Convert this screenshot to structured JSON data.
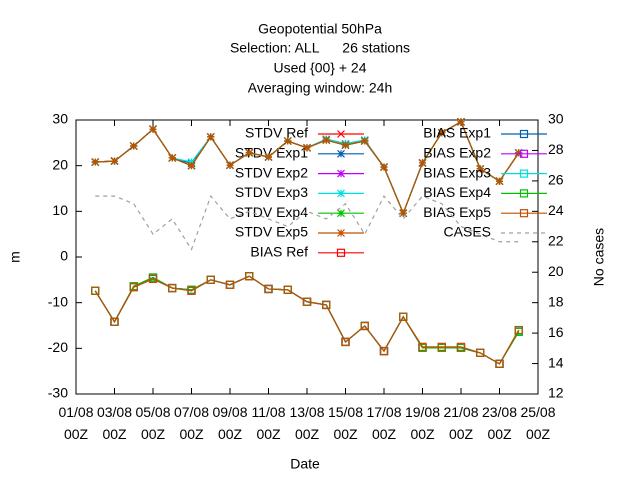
{
  "chart_data": {
    "type": "line",
    "title": [
      "Geopotential 50hPa",
      "Selection: ALL      26 stations",
      "Used {00} + 24",
      "Averaging window: 24h"
    ],
    "xlabel": "Date",
    "ylabel": "m",
    "y2label": "No cases",
    "x": [
      2,
      3,
      4,
      5,
      6,
      7,
      8,
      9,
      10,
      11,
      12,
      13,
      14,
      15,
      16,
      17,
      18,
      19,
      20,
      21,
      22,
      23,
      24
    ],
    "xlim": [
      1,
      25
    ],
    "xticks": [
      {
        "value": 1,
        "label": "01/08 00Z"
      },
      {
        "value": 3,
        "label": "03/08 00Z"
      },
      {
        "value": 5,
        "label": "05/08 00Z"
      },
      {
        "value": 7,
        "label": "07/08 00Z"
      },
      {
        "value": 9,
        "label": "09/08 00Z"
      },
      {
        "value": 11,
        "label": "11/08 00Z"
      },
      {
        "value": 13,
        "label": "13/08 00Z"
      },
      {
        "value": 15,
        "label": "15/08 00Z"
      },
      {
        "value": 17,
        "label": "17/08 00Z"
      },
      {
        "value": 19,
        "label": "19/08 00Z"
      },
      {
        "value": 21,
        "label": "21/08 00Z"
      },
      {
        "value": 23,
        "label": "23/08 00Z"
      },
      {
        "value": 25,
        "label": "25/08 00Z"
      }
    ],
    "ylim": [
      -30,
      30
    ],
    "yticks": [
      -30,
      -20,
      -10,
      0,
      10,
      20,
      30
    ],
    "y2lim": [
      12,
      30
    ],
    "y2ticks": [
      12,
      14,
      16,
      18,
      20,
      22,
      24,
      26,
      28,
      30
    ],
    "series": [
      {
        "name": "STDV Ref",
        "color": "#ff0000",
        "marker": "x",
        "values": [
          20.8,
          21,
          24.3,
          28,
          21.7,
          20,
          26.3,
          20.1,
          22.8,
          21.9,
          25.4,
          23.9,
          25.6,
          24.5,
          25.4,
          19.7,
          9.6,
          20.6,
          27.2,
          29.6,
          19.3,
          16.6,
          22.8
        ]
      },
      {
        "name": "STDV Exp1",
        "color": "#0060ad",
        "marker": "star",
        "values": [
          20.8,
          21,
          24.3,
          28,
          21.7,
          20.5,
          26.3,
          20.1,
          22.8,
          21.9,
          25.4,
          23.9,
          25.8,
          24.8,
          25.6,
          19.7,
          9.6,
          20.6,
          27.2,
          29.6,
          19.3,
          16.6,
          22.8
        ]
      },
      {
        "name": "STDV Exp2",
        "color": "#c000ff",
        "marker": "star",
        "values": [
          20.8,
          21,
          24.3,
          28,
          21.7,
          20,
          26.3,
          20.1,
          22.8,
          21.9,
          25.4,
          23.9,
          25.6,
          24.5,
          25.4,
          19.7,
          9.6,
          20.6,
          27.2,
          29.6,
          19.3,
          16.6,
          22.8
        ]
      },
      {
        "name": "STDV Exp3",
        "color": "#00e0e0",
        "marker": "star",
        "values": [
          20.8,
          21,
          24.3,
          28,
          21.7,
          20.8,
          26.3,
          20.1,
          22.8,
          21.9,
          25.4,
          23.9,
          25.8,
          24.8,
          25.6,
          19.7,
          9.6,
          20.6,
          27.2,
          29.6,
          19.3,
          16.6,
          22.8
        ]
      },
      {
        "name": "STDV Exp4",
        "color": "#00c000",
        "marker": "star",
        "values": [
          20.8,
          21,
          24.3,
          28,
          21.7,
          20,
          26.3,
          20.1,
          22.8,
          21.9,
          25.4,
          23.9,
          25.6,
          24.5,
          25.4,
          19.7,
          9.6,
          20.6,
          27.2,
          29.6,
          19.3,
          16.6,
          22.8
        ]
      },
      {
        "name": "STDV Exp5",
        "color": "#c05000",
        "marker": "star",
        "values": [
          20.8,
          21,
          24.3,
          28,
          21.7,
          20,
          26.3,
          20.1,
          22.8,
          21.9,
          25.4,
          23.9,
          25.6,
          24.5,
          25.4,
          19.7,
          9.6,
          20.6,
          27.2,
          29.6,
          19.3,
          16.6,
          22.8
        ]
      },
      {
        "name": "BIAS Ref",
        "color": "#ff0000",
        "marker": "square",
        "values": [
          -7.4,
          -14.2,
          -6.6,
          -4.8,
          -6.8,
          -7.4,
          -5,
          -6.1,
          -4.2,
          -7,
          -7.2,
          -9.8,
          -10.5,
          -18.6,
          -15.1,
          -20.6,
          -13.1,
          -19.7,
          -19.7,
          -19.7,
          -21,
          -23.4,
          -16
        ]
      },
      {
        "name": "BIAS Exp1",
        "color": "#0060ad",
        "marker": "square",
        "values": [
          -7.4,
          -14.2,
          -6.4,
          -4.5,
          -6.8,
          -7.2,
          -5,
          -6.1,
          -4.2,
          -7,
          -7.2,
          -9.8,
          -10.5,
          -18.6,
          -15.1,
          -20.6,
          -13.1,
          -19.9,
          -19.9,
          -19.9,
          -21,
          -23.4,
          -16.2
        ]
      },
      {
        "name": "BIAS Exp2",
        "color": "#c000ff",
        "marker": "square",
        "values": [
          -7.4,
          -14.2,
          -6.4,
          -4.5,
          -6.8,
          -7.2,
          -5,
          -6.1,
          -4.2,
          -7,
          -7.2,
          -9.8,
          -10.5,
          -18.6,
          -15.1,
          -20.6,
          -13.1,
          -19.9,
          -19.9,
          -19.9,
          -21,
          -23.4,
          -16.2
        ]
      },
      {
        "name": "BIAS Exp3",
        "color": "#00e0e0",
        "marker": "square",
        "values": [
          -7.4,
          -14.2,
          -6.4,
          -4.5,
          -6.8,
          -7.2,
          -5,
          -6.1,
          -4.2,
          -7,
          -7.2,
          -9.8,
          -10.5,
          -18.6,
          -15.1,
          -20.6,
          -13.1,
          -19.9,
          -19.9,
          -19.9,
          -21,
          -23.4,
          -16.2
        ]
      },
      {
        "name": "BIAS Exp4",
        "color": "#00c000",
        "marker": "square",
        "values": [
          -7.4,
          -14.2,
          -6.4,
          -4.5,
          -6.8,
          -7.2,
          -5,
          -6.1,
          -4.2,
          -7,
          -7.2,
          -9.8,
          -10.5,
          -18.6,
          -15.1,
          -20.6,
          -13.1,
          -19.9,
          -19.9,
          -19.9,
          -21,
          -23.4,
          -16.4
        ]
      },
      {
        "name": "BIAS Exp5",
        "color": "#c05000",
        "marker": "square",
        "values": [
          -7.4,
          -14.2,
          -6.6,
          -4.8,
          -6.8,
          -7.4,
          -5,
          -6.1,
          -4.2,
          -7,
          -7.2,
          -9.8,
          -10.5,
          -18.6,
          -15.1,
          -20.6,
          -13.1,
          -19.7,
          -19.7,
          -19.7,
          -21,
          -23.4,
          -16
        ]
      },
      {
        "name": "CASES",
        "color": "#a0a0a0",
        "marker": "none",
        "dash": true,
        "axis": "y2",
        "values": [
          25,
          25,
          24.5,
          22.5,
          23.5,
          21.5,
          25,
          23.5,
          24,
          23.5,
          23,
          24,
          23.5,
          24.5,
          22.5,
          25,
          23.5,
          25,
          24.5,
          23,
          22.5,
          22,
          22
        ]
      }
    ]
  }
}
